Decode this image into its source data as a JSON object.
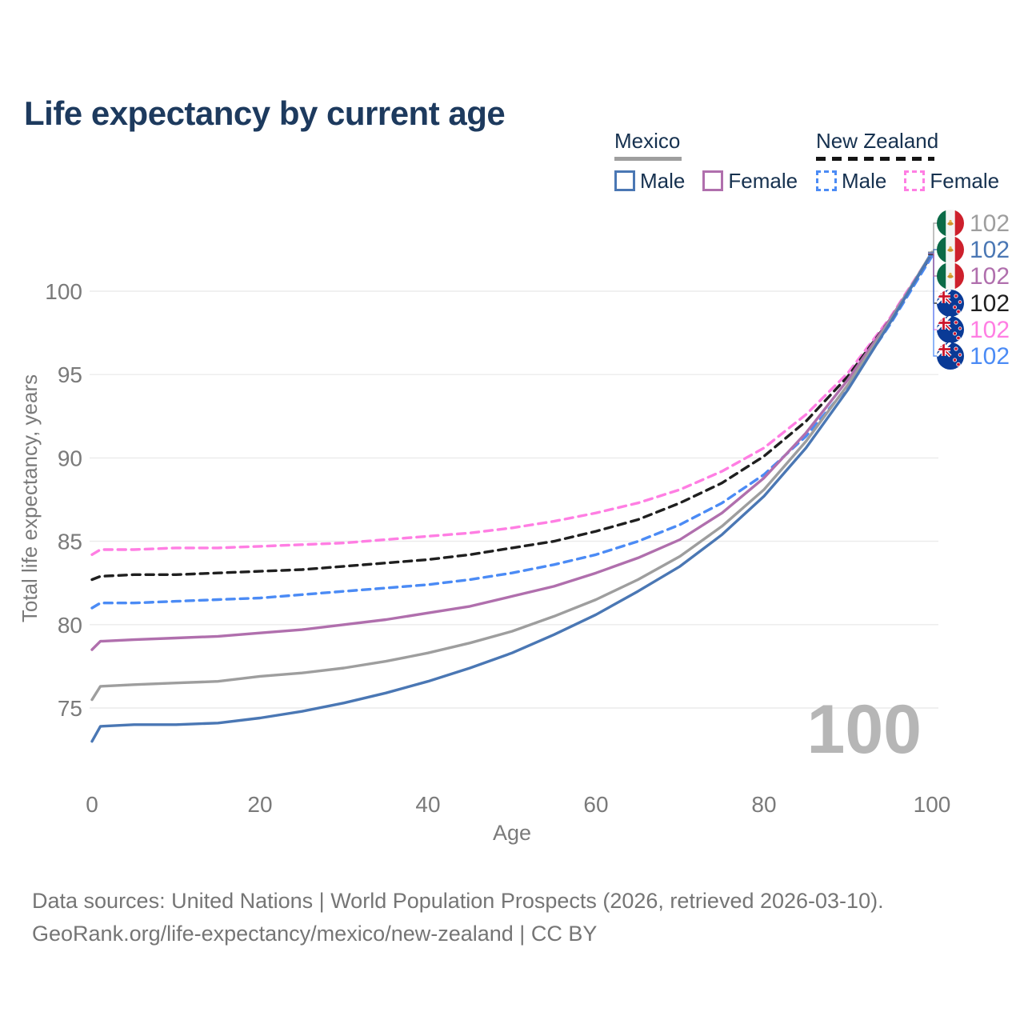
{
  "title": "Life expectancy by current age",
  "legend": {
    "groups": [
      {
        "country": "Mexico",
        "line_style": "solid",
        "underline_color": "#9e9e9e",
        "items": [
          {
            "label": "Male",
            "color": "#4a77b4"
          },
          {
            "label": "Female",
            "color": "#b06fad"
          }
        ]
      },
      {
        "country": "New Zealand",
        "line_style": "dashed",
        "underline_color": "#141414",
        "items": [
          {
            "label": "Male",
            "color": "#4b8bf5"
          },
          {
            "label": "Female",
            "color": "#ff7ee3"
          }
        ]
      }
    ]
  },
  "axes": {
    "y_label": "Total life expectancy, years",
    "y_ticks": [
      75,
      80,
      85,
      90,
      95,
      100
    ],
    "x_label": "Age",
    "x_ticks": [
      0,
      20,
      40,
      60,
      80,
      100
    ]
  },
  "watermark": "100",
  "end_labels": [
    {
      "flag": "mx",
      "value": "102",
      "color": "#9e9e9e"
    },
    {
      "flag": "mx",
      "value": "102",
      "color": "#4a77b4"
    },
    {
      "flag": "mx",
      "value": "102",
      "color": "#b06fad"
    },
    {
      "flag": "nz",
      "value": "102",
      "color": "#1f1f1f"
    },
    {
      "flag": "nz",
      "value": "102",
      "color": "#ff7ee3"
    },
    {
      "flag": "nz",
      "value": "102",
      "color": "#4b8bf5"
    }
  ],
  "footer": {
    "line1": "Data sources: United Nations | World Population Prospects (2026, retrieved 2026-03-10).",
    "line2": "GeoRank.org/life-expectancy/mexico/new-zealand | CC BY"
  },
  "chart_data": {
    "type": "line",
    "title": "Life expectancy by current age",
    "xlabel": "Age",
    "ylabel": "Total life expectancy, years",
    "xlim": [
      0,
      100
    ],
    "ylim": [
      72,
      103
    ],
    "grid": "horizontal",
    "legend_position": "top-right",
    "x": [
      0,
      1,
      5,
      10,
      15,
      20,
      25,
      30,
      35,
      40,
      45,
      50,
      55,
      60,
      65,
      70,
      75,
      80,
      85,
      90,
      95,
      100
    ],
    "series": [
      {
        "name": "New Zealand Female",
        "color": "#ff7ee3",
        "dash": true,
        "label_row": 4,
        "values": [
          84.2,
          84.5,
          84.5,
          84.6,
          84.6,
          84.7,
          84.8,
          84.9,
          85.1,
          85.3,
          85.5,
          85.8,
          86.2,
          86.7,
          87.3,
          88.1,
          89.2,
          90.6,
          92.6,
          95.1,
          98.4,
          102.3
        ]
      },
      {
        "name": "New Zealand Both sexes",
        "color": "#1f1f1f",
        "dash": true,
        "label_row": 3,
        "values": [
          82.7,
          82.9,
          83.0,
          83.0,
          83.1,
          83.2,
          83.3,
          83.5,
          83.7,
          83.9,
          84.2,
          84.6,
          85.0,
          85.6,
          86.3,
          87.3,
          88.5,
          90.1,
          92.2,
          94.9,
          98.3,
          102.2
        ]
      },
      {
        "name": "New Zealand Male",
        "color": "#4b8bf5",
        "dash": true,
        "label_row": 5,
        "values": [
          81.0,
          81.3,
          81.3,
          81.4,
          81.5,
          81.6,
          81.8,
          82.0,
          82.2,
          82.4,
          82.7,
          83.1,
          83.6,
          84.2,
          85.0,
          86.0,
          87.3,
          89.0,
          91.3,
          94.3,
          98.0,
          102.1
        ]
      },
      {
        "name": "Mexico Female",
        "color": "#b06fad",
        "dash": false,
        "label_row": 2,
        "values": [
          78.5,
          79.0,
          79.1,
          79.2,
          79.3,
          79.5,
          79.7,
          80.0,
          80.3,
          80.7,
          81.1,
          81.7,
          82.3,
          83.1,
          84.0,
          85.1,
          86.7,
          88.8,
          91.5,
          94.7,
          98.3,
          102.25
        ]
      },
      {
        "name": "Mexico Both sexes",
        "color": "#9e9e9e",
        "dash": false,
        "label_row": 0,
        "values": [
          75.5,
          76.3,
          76.4,
          76.5,
          76.6,
          76.9,
          77.1,
          77.4,
          77.8,
          78.3,
          78.9,
          79.6,
          80.5,
          81.5,
          82.7,
          84.1,
          85.9,
          88.1,
          91.0,
          94.4,
          98.2,
          102.35
        ]
      },
      {
        "name": "Mexico Male",
        "color": "#4a77b4",
        "dash": false,
        "label_row": 1,
        "values": [
          73.0,
          73.9,
          74.0,
          74.0,
          74.1,
          74.4,
          74.8,
          75.3,
          75.9,
          76.6,
          77.4,
          78.3,
          79.4,
          80.6,
          82.0,
          83.5,
          85.4,
          87.7,
          90.6,
          94.1,
          98.1,
          102.3
        ]
      }
    ],
    "end_value_label": "102"
  }
}
